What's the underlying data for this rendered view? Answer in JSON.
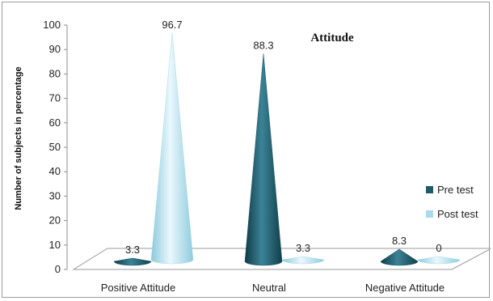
{
  "chart_data": {
    "type": "bar",
    "title": "Attitude",
    "xlabel": "",
    "ylabel": "Number of subjects in percentage",
    "ylim": [
      0,
      100
    ],
    "yticks": [
      0,
      10,
      20,
      30,
      40,
      50,
      60,
      70,
      80,
      90,
      100
    ],
    "categories": [
      "Positive Attitude",
      "Neutral",
      "Negative Attitude"
    ],
    "series": [
      {
        "name": "Pre test",
        "values": [
          3.3,
          88.3,
          8.3
        ],
        "color": "#1d5a6a"
      },
      {
        "name": "Post test",
        "values": [
          96.7,
          3.3,
          0
        ],
        "color": "#a9dbe9"
      }
    ],
    "data_labels": [
      [
        "3.3",
        "88.3",
        "8.3"
      ],
      [
        "96.7",
        "3.3",
        "0"
      ]
    ],
    "legend_position": "right",
    "grid": false,
    "style": "3d-cone"
  }
}
